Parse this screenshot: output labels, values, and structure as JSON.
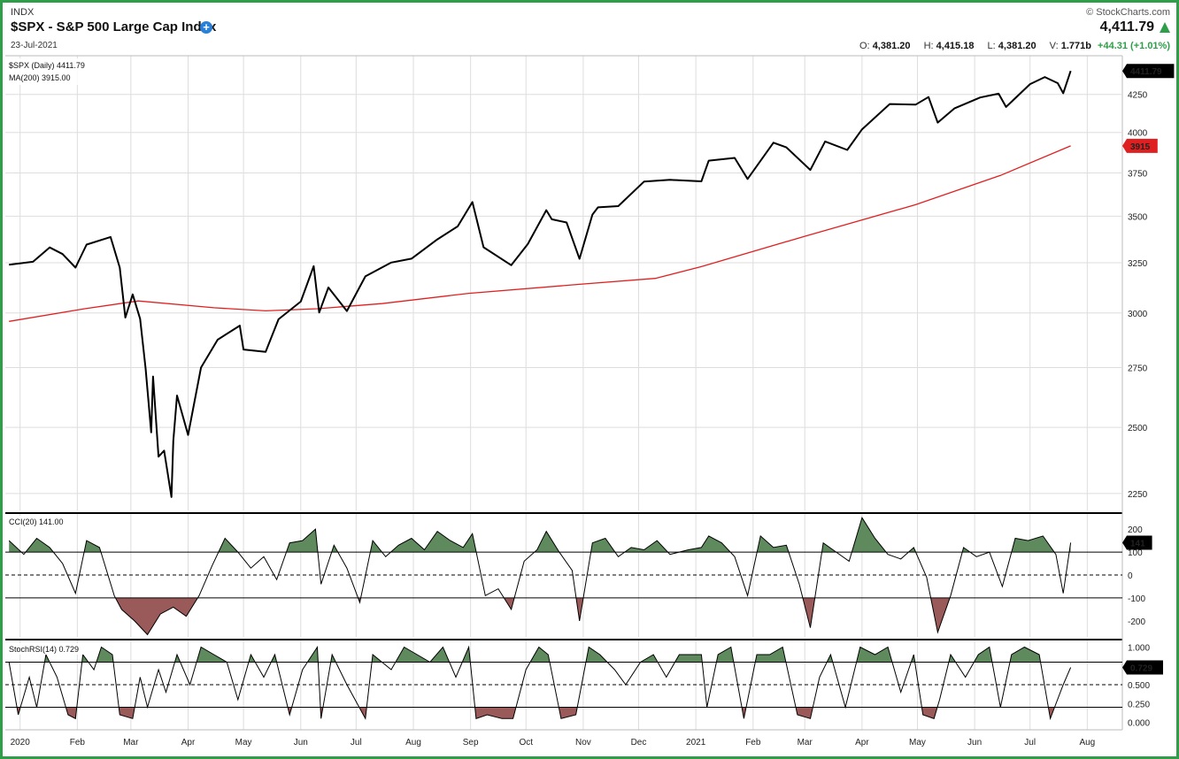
{
  "header": {
    "exchange": "INDX",
    "title": "$SPX - S&P 500 Large Cap Index",
    "date": "23-Jul-2021",
    "brand": "© StockCharts.com",
    "last": "4,411.79",
    "open_label": "O:",
    "open": "4,381.20",
    "high_label": "H:",
    "high": "4,415.18",
    "low_label": "L:",
    "low": "4,381.20",
    "volume_label": "V:",
    "volume": "1.771b",
    "change": "+44.31 (+1.01%)"
  },
  "colors": {
    "price": "#000000",
    "ma": "#e02020",
    "overbought_fill": "#5e8a5e",
    "oversold_fill": "#9a5a5a",
    "border": "#2e9e48",
    "grid": "#dddddd"
  },
  "chart_data": [
    {
      "type": "line",
      "panel": "price",
      "legend": [
        "$SPX (Daily) 4411.79",
        "MA(200) 3915.00"
      ],
      "last_value_label": "4411.79",
      "ma_value_label": "3915",
      "yticks": [
        2250,
        2500,
        2750,
        3000,
        3250,
        3500,
        3750,
        4000,
        4250
      ],
      "ytick_labels": [
        "2250",
        "2500",
        "2750",
        "3000",
        "3250",
        "3500",
        "3750",
        "4000",
        "4250"
      ],
      "y_scale": "log",
      "ylim": [
        2190,
        4520
      ],
      "x_tick_labels": [
        "2020",
        "Feb",
        "Mar",
        "Apr",
        "May",
        "Jun",
        "Jul",
        "Aug",
        "Sep",
        "Oct",
        "Nov",
        "Dec",
        "2021",
        "Feb",
        "Mar",
        "Apr",
        "May",
        "Jun",
        "Jul",
        "Aug"
      ],
      "x_tick_dates": [
        "2020-01-01",
        "2020-02-01",
        "2020-03-01",
        "2020-04-01",
        "2020-05-01",
        "2020-06-01",
        "2020-07-01",
        "2020-08-01",
        "2020-09-01",
        "2020-10-01",
        "2020-11-01",
        "2020-12-01",
        "2021-01-01",
        "2021-02-01",
        "2021-03-01",
        "2021-04-01",
        "2021-05-01",
        "2021-06-01",
        "2021-07-01",
        "2021-08-01"
      ],
      "series": [
        {
          "name": "$SPX (Daily)",
          "x": [
            "2019-12-26",
            "2020-01-08",
            "2020-01-17",
            "2020-01-24",
            "2020-01-31",
            "2020-02-06",
            "2020-02-19",
            "2020-02-24",
            "2020-02-27",
            "2020-03-02",
            "2020-03-06",
            "2020-03-09",
            "2020-03-12",
            "2020-03-13",
            "2020-03-16",
            "2020-03-19",
            "2020-03-23",
            "2020-03-24",
            "2020-03-26",
            "2020-04-01",
            "2020-04-08",
            "2020-04-17",
            "2020-04-29",
            "2020-05-01",
            "2020-05-13",
            "2020-05-20",
            "2020-06-01",
            "2020-06-08",
            "2020-06-11",
            "2020-06-16",
            "2020-06-26",
            "2020-07-06",
            "2020-07-20",
            "2020-07-31",
            "2020-08-14",
            "2020-08-25",
            "2020-09-02",
            "2020-09-08",
            "2020-09-23",
            "2020-10-02",
            "2020-10-12",
            "2020-10-15",
            "2020-10-23",
            "2020-10-30",
            "2020-11-06",
            "2020-11-09",
            "2020-11-20",
            "2020-12-04",
            "2020-12-18",
            "2021-01-04",
            "2021-01-08",
            "2021-01-22",
            "2021-01-29",
            "2021-02-12",
            "2021-02-19",
            "2021-03-04",
            "2021-03-12",
            "2021-03-24",
            "2021-04-01",
            "2021-04-16",
            "2021-04-30",
            "2021-05-07",
            "2021-05-12",
            "2021-05-21",
            "2021-06-04",
            "2021-06-14",
            "2021-06-18",
            "2021-07-01",
            "2021-07-09",
            "2021-07-16",
            "2021-07-19",
            "2021-07-23"
          ],
          "values": [
            3240,
            3255,
            3330,
            3295,
            3225,
            3345,
            3386,
            3225,
            2978,
            3090,
            2972,
            2746,
            2480,
            2711,
            2386,
            2409,
            2237,
            2447,
            2630,
            2470,
            2750,
            2875,
            2940,
            2830,
            2820,
            2970,
            3055,
            3232,
            3002,
            3124,
            3009,
            3180,
            3251,
            3271,
            3373,
            3444,
            3580,
            3331,
            3237,
            3348,
            3534,
            3483,
            3465,
            3270,
            3509,
            3550,
            3557,
            3699,
            3709,
            3700,
            3824,
            3841,
            3714,
            3935,
            3906,
            3768,
            3943,
            3890,
            4020,
            4185,
            4181,
            4232,
            4063,
            4156,
            4229,
            4255,
            4166,
            4320,
            4369,
            4327,
            4258,
            4411.79
          ]
        },
        {
          "name": "MA(200)",
          "x": [
            "2019-12-26",
            "2020-02-05",
            "2020-03-05",
            "2020-04-15",
            "2020-05-13",
            "2020-06-10",
            "2020-07-15",
            "2020-08-31",
            "2020-10-30",
            "2020-12-10",
            "2021-01-04",
            "2021-03-01",
            "2021-04-30",
            "2021-06-15",
            "2021-07-23"
          ],
          "values": [
            2960,
            3020,
            3058,
            3025,
            3010,
            3020,
            3045,
            3095,
            3140,
            3170,
            3230,
            3390,
            3565,
            3735,
            3915
          ]
        }
      ]
    },
    {
      "type": "line",
      "panel": "indicator",
      "legend": [
        "CCI(20) 141.00"
      ],
      "last_value_label": "141",
      "yticks": [
        -200,
        -100,
        0,
        100,
        200
      ],
      "ytick_labels": [
        "-200",
        "-100",
        "0",
        "100",
        "200"
      ],
      "ylim": [
        -270,
        270
      ],
      "reference_lines": [
        100,
        0,
        -100
      ],
      "series": [
        {
          "name": "CCI(20)",
          "x": [
            "2019-12-26",
            "2020-01-03",
            "2020-01-10",
            "2020-01-17",
            "2020-01-24",
            "2020-01-31",
            "2020-02-06",
            "2020-02-13",
            "2020-02-21",
            "2020-02-25",
            "2020-03-03",
            "2020-03-10",
            "2020-03-17",
            "2020-03-24",
            "2020-03-31",
            "2020-04-07",
            "2020-04-14",
            "2020-04-21",
            "2020-04-28",
            "2020-05-05",
            "2020-05-12",
            "2020-05-19",
            "2020-05-26",
            "2020-06-02",
            "2020-06-09",
            "2020-06-12",
            "2020-06-19",
            "2020-06-26",
            "2020-07-03",
            "2020-07-10",
            "2020-07-17",
            "2020-07-24",
            "2020-07-31",
            "2020-08-07",
            "2020-08-14",
            "2020-08-21",
            "2020-08-28",
            "2020-09-02",
            "2020-09-09",
            "2020-09-16",
            "2020-09-23",
            "2020-09-30",
            "2020-10-07",
            "2020-10-12",
            "2020-10-19",
            "2020-10-26",
            "2020-10-30",
            "2020-11-06",
            "2020-11-13",
            "2020-11-20",
            "2020-11-27",
            "2020-12-04",
            "2020-12-11",
            "2020-12-18",
            "2020-12-28",
            "2021-01-04",
            "2021-01-08",
            "2021-01-15",
            "2021-01-22",
            "2021-01-29",
            "2021-02-05",
            "2021-02-12",
            "2021-02-19",
            "2021-02-26",
            "2021-03-04",
            "2021-03-11",
            "2021-03-18",
            "2021-03-25",
            "2021-04-01",
            "2021-04-08",
            "2021-04-15",
            "2021-04-22",
            "2021-04-29",
            "2021-05-06",
            "2021-05-12",
            "2021-05-19",
            "2021-05-26",
            "2021-06-02",
            "2021-06-09",
            "2021-06-16",
            "2021-06-23",
            "2021-06-30",
            "2021-07-08",
            "2021-07-15",
            "2021-07-19",
            "2021-07-23"
          ],
          "values": [
            150,
            90,
            160,
            120,
            50,
            -80,
            150,
            120,
            -90,
            -150,
            -200,
            -260,
            -170,
            -140,
            -180,
            -90,
            40,
            160,
            100,
            30,
            80,
            -20,
            140,
            150,
            200,
            -40,
            130,
            30,
            -120,
            150,
            80,
            130,
            160,
            110,
            190,
            150,
            120,
            180,
            -90,
            -60,
            -150,
            60,
            110,
            190,
            100,
            20,
            -200,
            140,
            160,
            80,
            120,
            110,
            150,
            90,
            110,
            120,
            170,
            140,
            80,
            -90,
            170,
            120,
            130,
            -40,
            -230,
            140,
            100,
            60,
            250,
            160,
            90,
            70,
            120,
            -10,
            -250,
            -90,
            120,
            80,
            100,
            -50,
            160,
            150,
            170,
            90,
            -80,
            141
          ]
        }
      ]
    },
    {
      "type": "line",
      "panel": "indicator",
      "legend": [
        "StochRSI(14) 0.729"
      ],
      "last_value_label": "0.729",
      "yticks": [
        0,
        0.25,
        0.5,
        0.75,
        1
      ],
      "ytick_labels": [
        "0.000",
        "0.250",
        "0.500",
        "0.750",
        "1.000"
      ],
      "ylim": [
        -0.1,
        1.1
      ],
      "reference_lines": [
        0.8,
        0.5,
        0.2
      ],
      "series": [
        {
          "name": "StochRSI(14)",
          "x": [
            "2019-12-26",
            "2019-12-31",
            "2020-01-06",
            "2020-01-10",
            "2020-01-15",
            "2020-01-21",
            "2020-01-27",
            "2020-01-31",
            "2020-02-04",
            "2020-02-10",
            "2020-02-14",
            "2020-02-20",
            "2020-02-24",
            "2020-03-02",
            "2020-03-06",
            "2020-03-10",
            "2020-03-16",
            "2020-03-20",
            "2020-03-26",
            "2020-04-02",
            "2020-04-08",
            "2020-04-15",
            "2020-04-22",
            "2020-04-28",
            "2020-05-05",
            "2020-05-12",
            "2020-05-18",
            "2020-05-26",
            "2020-06-02",
            "2020-06-10",
            "2020-06-12",
            "2020-06-18",
            "2020-06-26",
            "2020-07-06",
            "2020-07-10",
            "2020-07-20",
            "2020-07-27",
            "2020-08-03",
            "2020-08-10",
            "2020-08-17",
            "2020-08-24",
            "2020-08-31",
            "2020-09-04",
            "2020-09-10",
            "2020-09-18",
            "2020-09-24",
            "2020-10-01",
            "2020-10-08",
            "2020-10-13",
            "2020-10-20",
            "2020-10-28",
            "2020-11-04",
            "2020-11-10",
            "2020-11-18",
            "2020-11-24",
            "2020-12-02",
            "2020-12-09",
            "2020-12-16",
            "2020-12-23",
            "2021-01-04",
            "2021-01-07",
            "2021-01-13",
            "2021-01-20",
            "2021-01-27",
            "2021-02-03",
            "2021-02-10",
            "2021-02-17",
            "2021-02-25",
            "2021-03-04",
            "2021-03-09",
            "2021-03-15",
            "2021-03-23",
            "2021-03-31",
            "2021-04-08",
            "2021-04-15",
            "2021-04-22",
            "2021-04-29",
            "2021-05-04",
            "2021-05-10",
            "2021-05-13",
            "2021-05-19",
            "2021-05-27",
            "2021-06-03",
            "2021-06-09",
            "2021-06-15",
            "2021-06-21",
            "2021-06-28",
            "2021-07-06",
            "2021-07-12",
            "2021-07-19",
            "2021-07-23"
          ],
          "values": [
            0.8,
            0.1,
            0.6,
            0.2,
            0.9,
            0.6,
            0.1,
            0.05,
            0.9,
            0.7,
            1.0,
            0.9,
            0.1,
            0.05,
            0.6,
            0.2,
            0.7,
            0.4,
            0.9,
            0.5,
            1.0,
            0.9,
            0.8,
            0.3,
            0.9,
            0.6,
            0.9,
            0.1,
            0.7,
            1.0,
            0.05,
            0.9,
            0.5,
            0.05,
            0.9,
            0.7,
            1.0,
            0.9,
            0.8,
            1.0,
            0.6,
            1.0,
            0.05,
            0.1,
            0.05,
            0.05,
            0.7,
            1.0,
            0.9,
            0.05,
            0.1,
            1.0,
            0.9,
            0.7,
            0.5,
            0.8,
            0.9,
            0.6,
            0.9,
            0.9,
            0.2,
            0.9,
            1.0,
            0.05,
            0.9,
            0.9,
            1.0,
            0.1,
            0.05,
            0.6,
            0.9,
            0.2,
            1.0,
            0.9,
            1.0,
            0.4,
            0.9,
            0.1,
            0.05,
            0.3,
            0.9,
            0.6,
            0.9,
            1.0,
            0.2,
            0.9,
            1.0,
            0.9,
            0.05,
            0.5,
            0.729
          ]
        }
      ]
    }
  ]
}
